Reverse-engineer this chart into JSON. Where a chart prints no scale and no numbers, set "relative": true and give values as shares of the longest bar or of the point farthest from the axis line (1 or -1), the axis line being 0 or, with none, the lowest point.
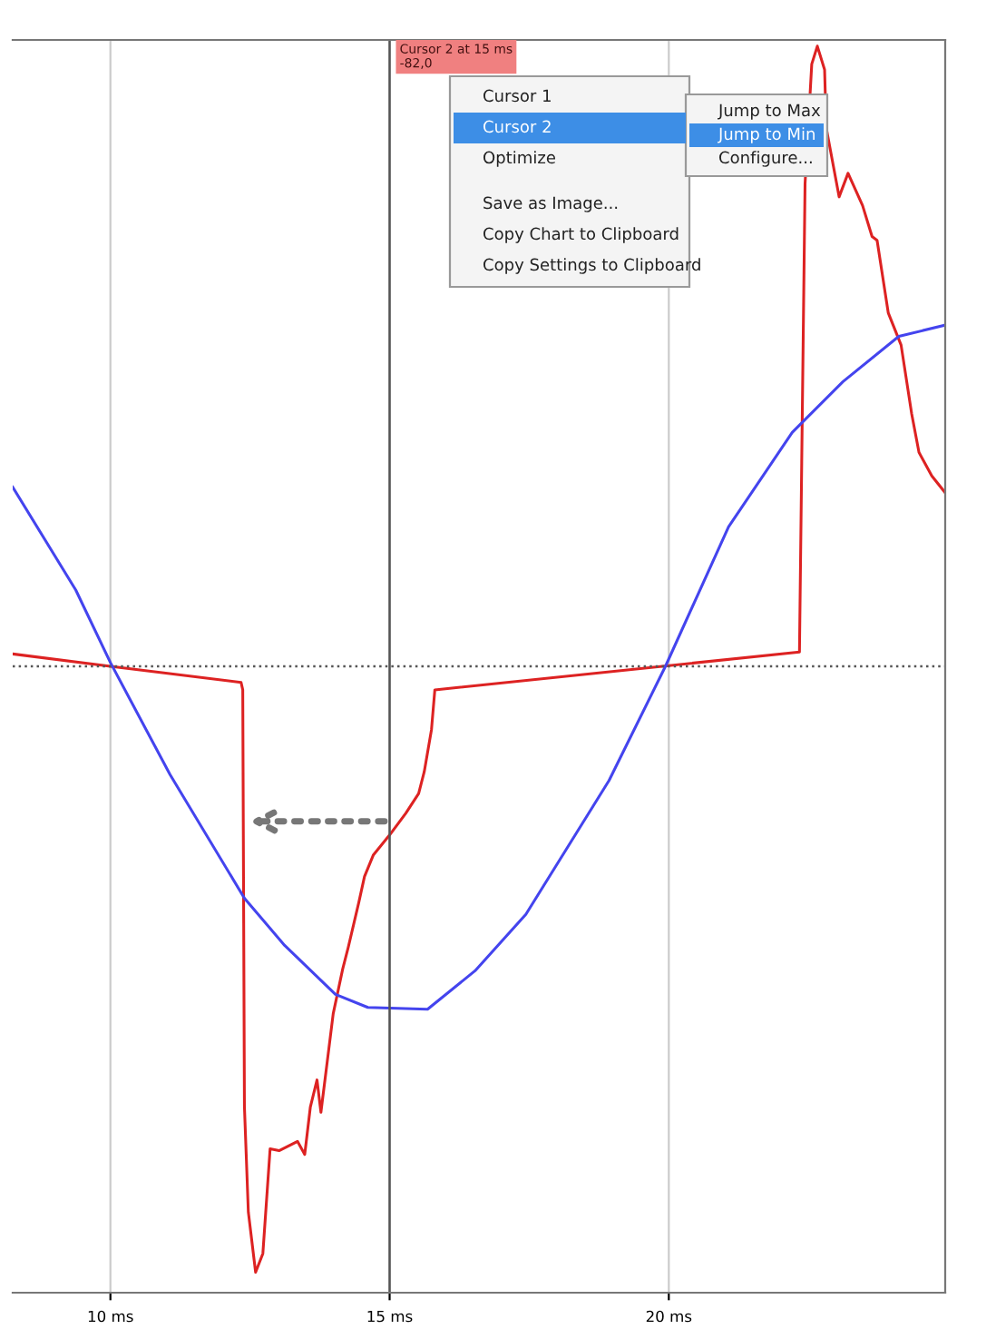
{
  "chart_data": {
    "type": "line",
    "relative": true,
    "xlim": [
      8.25,
      24.95
    ],
    "xticks": [
      {
        "value": 10,
        "label": "10 ms"
      },
      {
        "value": 15,
        "label": "15 ms"
      },
      {
        "value": 20,
        "label": "20 ms"
      }
    ],
    "grid": "x",
    "line_style": "solid",
    "marker": "none",
    "series": [
      {
        "color": "#dd2222",
        "x": [
          8.25,
          10,
          12.34,
          12.37,
          12.4,
          12.47,
          12.6,
          12.73,
          12.86,
          13.02,
          13.35,
          13.48,
          13.58,
          13.7,
          13.77,
          13.99,
          14.16,
          14.26,
          14.45,
          14.55,
          14.71,
          15,
          15.29,
          15.52,
          15.62,
          15.75,
          15.81,
          22.34,
          22.44,
          22.56,
          22.66,
          22.79,
          22.82,
          23.05,
          23.21,
          23.47,
          23.64,
          23.73,
          23.93,
          24.16,
          24.35,
          24.48,
          24.71,
          24.94
        ],
        "values": [
          0.02,
          0,
          -0.026,
          -0.038,
          -0.71,
          -0.88,
          -0.977,
          -0.947,
          -0.778,
          -0.781,
          -0.766,
          -0.787,
          -0.711,
          -0.667,
          -0.719,
          -0.56,
          -0.488,
          -0.453,
          -0.38,
          -0.339,
          -0.304,
          -0.272,
          -0.237,
          -0.205,
          -0.17,
          -0.102,
          -0.038,
          0.023,
          0.778,
          0.971,
          1.0,
          0.962,
          0.868,
          0.757,
          0.795,
          0.743,
          0.693,
          0.687,
          0.57,
          0.518,
          0.407,
          0.345,
          0.307,
          0.281
        ]
      },
      {
        "color": "#4444ee",
        "x": [
          8.25,
          9.38,
          10,
          11.07,
          12.4,
          13.12,
          14.03,
          14.61,
          15.68,
          16.53,
          17.44,
          18.93,
          19.94,
          21.07,
          22.21,
          23.12,
          24.12,
          24.94
        ],
        "values": [
          0.289,
          0.123,
          0.006,
          -0.175,
          -0.374,
          -0.45,
          -0.529,
          -0.55,
          -0.553,
          -0.491,
          -0.4,
          -0.184,
          0,
          0.225,
          0.377,
          0.459,
          0.532,
          0.55
        ]
      }
    ],
    "ref_lines": [
      {
        "axis": "y",
        "value": 0,
        "line_style": "dotted",
        "color": "#555555"
      },
      {
        "axis": "x",
        "value": 15,
        "color": "#555555",
        "label": "Cursor 2 at 15 ms\n-82,0"
      }
    ],
    "annotations": [
      "Cursor 1",
      "Cursor 2",
      "Optimize",
      "Save as Image...",
      "Copy Chart to Clipboard",
      "Copy Settings to Clipboard",
      "Jump to Max",
      "Jump to Min",
      "Configure..."
    ]
  }
}
